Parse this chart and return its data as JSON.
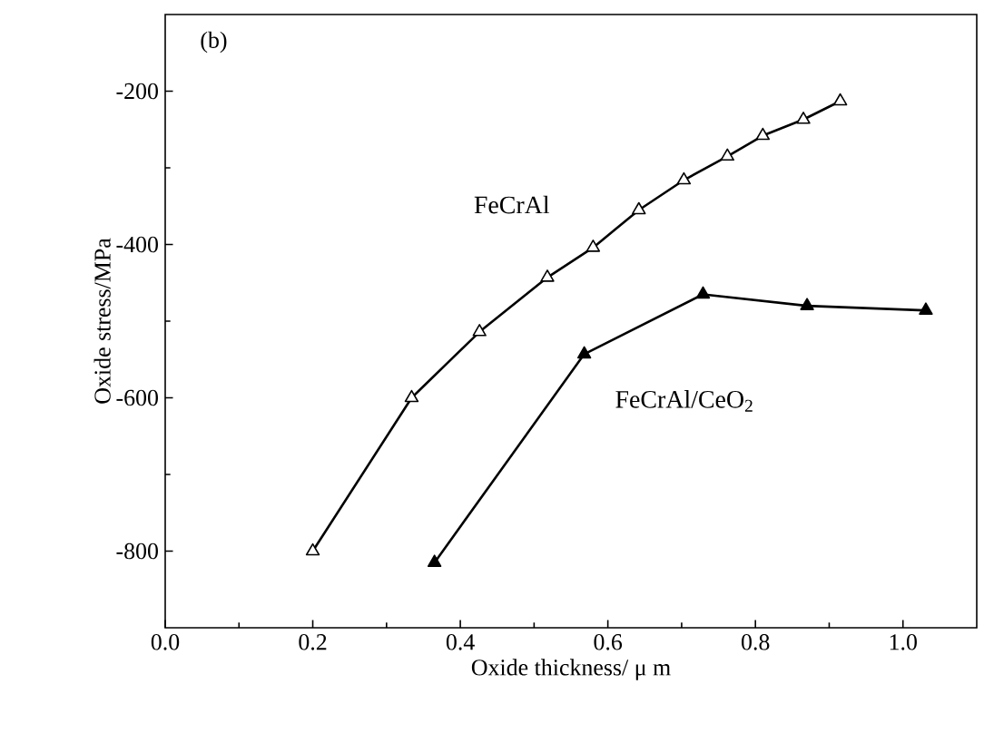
{
  "chart_data": {
    "type": "line",
    "xlabel": "Oxide thickness/ μ m",
    "ylabel": "Oxide stress/MPa",
    "annotations": [
      "(b)"
    ],
    "xlim": [
      0,
      1.1
    ],
    "xticks": [
      {
        "value": 0,
        "label": "0.0"
      },
      0.2,
      0.4,
      0.6,
      0.8,
      {
        "value": 1,
        "label": "1.0"
      }
    ],
    "ylim": [
      -900,
      -100
    ],
    "yticks": [
      -800,
      -600,
      -400,
      -200
    ],
    "grid": false,
    "line_style": "solid",
    "series": [
      {
        "name": "FeCrAl",
        "color": "#000000",
        "marker": "triangle-open",
        "x": [
          0.2,
          0.334,
          0.426,
          0.518,
          0.58,
          0.642,
          0.703,
          0.762,
          0.81,
          0.865,
          0.915
        ],
        "values": [
          -800,
          -600,
          -514,
          -443,
          -404,
          -355,
          -316,
          -285,
          -258,
          -237,
          -213
        ]
      },
      {
        "name": "FeCrAl/CeO$_{2}$",
        "color": "#000000",
        "marker": "triangle",
        "x": [
          0.365,
          0.568,
          0.729,
          0.87,
          1.031
        ],
        "values": [
          -815,
          -543,
          -465,
          -480,
          -486
        ]
      }
    ]
  }
}
